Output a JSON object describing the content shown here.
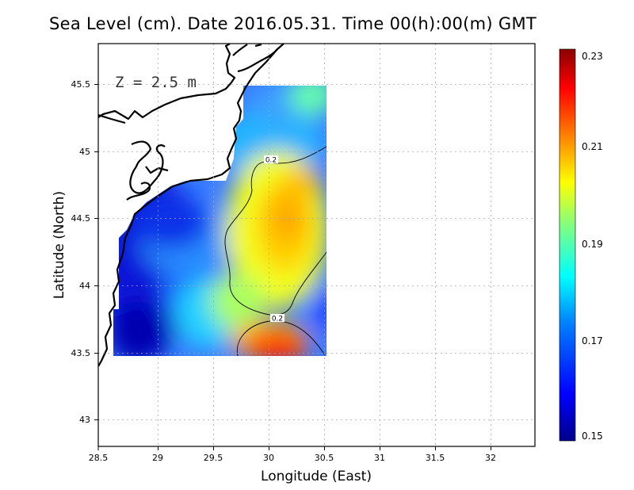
{
  "title": "Sea Level (cm). Date 2016.05.31. Time 00(h):00(m) GMT",
  "depth_label": "Z = 2.5 m",
  "colorbar": {
    "labels": [
      "0.23",
      "0.21",
      "0.19",
      "0.17",
      "0.15"
    ],
    "stops": [
      "#00008b",
      "#0000ff",
      "#0080ff",
      "#00ffff",
      "#80ff80",
      "#ffff00",
      "#ff8000",
      "#ff0000",
      "#8b0000"
    ]
  },
  "chart_data": {
    "type": "heatmap",
    "title": "Sea Level (cm). Date 2016.05.31. Time 00(h):00(m) GMT",
    "xlabel": "Longitude (East)",
    "ylabel": "Latitude (North)",
    "xlim": [
      28.5,
      32.4
    ],
    "ylim": [
      42.8,
      45.8
    ],
    "x_ticks": [
      "28.5",
      "29",
      "29.5",
      "30",
      "30.5",
      "31",
      "31.5",
      "32"
    ],
    "y_ticks": [
      "43",
      "43.5",
      "44",
      "44.5",
      "45",
      "45.5"
    ],
    "value_range": [
      0.15,
      0.23
    ],
    "contour_labels": [
      "0.2",
      "0.2"
    ],
    "grid": true
  }
}
